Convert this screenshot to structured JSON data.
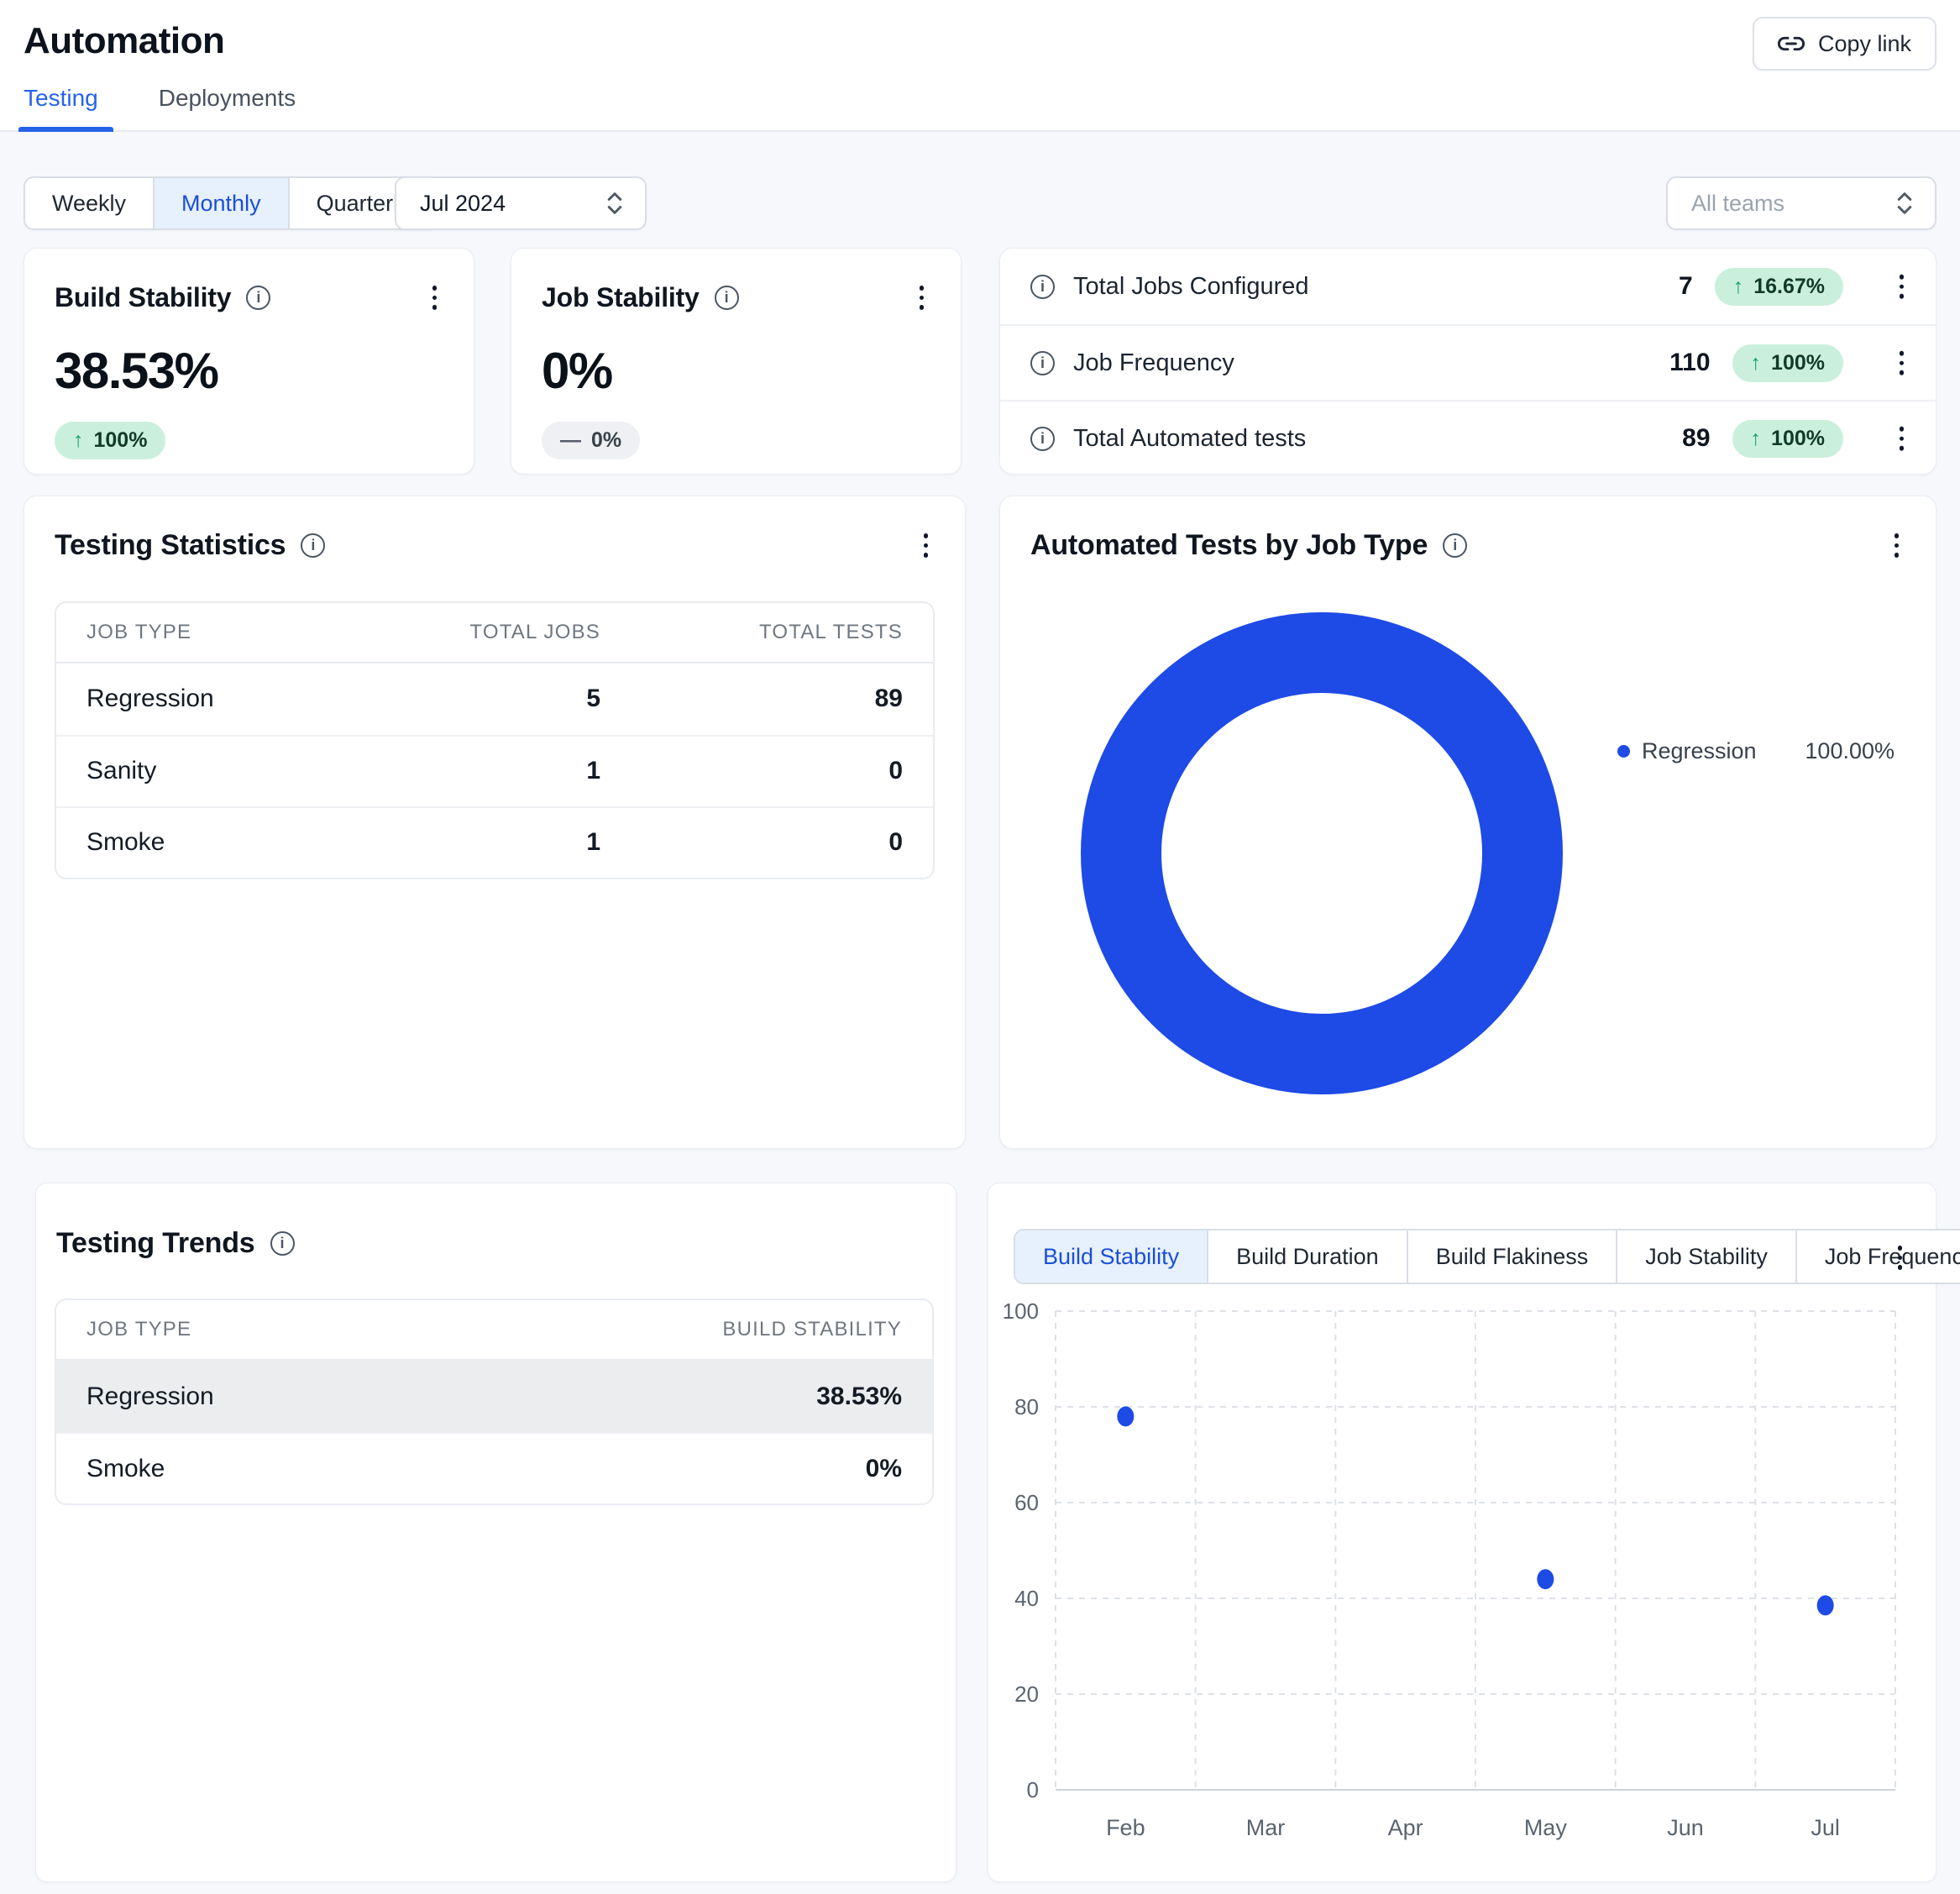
{
  "colors": {
    "accent_blue": "#1e4ae6",
    "tab_blue": "#2563eb",
    "badge_green_bg": "#cbefdd",
    "badge_green_text": "#103b2a"
  },
  "header": {
    "title": "Automation",
    "copy_link_label": "Copy link",
    "tabs": [
      {
        "label": "Testing"
      },
      {
        "label": "Deployments"
      }
    ]
  },
  "filters": {
    "periods": [
      {
        "label": "Weekly"
      },
      {
        "label": "Monthly"
      },
      {
        "label": "Quarterly"
      }
    ],
    "period_selected": "Monthly",
    "month_value": "Jul 2024",
    "teams_value": "All teams"
  },
  "metric_cards": [
    {
      "title": "Build Stability",
      "value": "38.53%",
      "arrow": "↑",
      "delta": "100%"
    },
    {
      "title": "Job Stability",
      "value": "0%",
      "arrow": "—",
      "delta": "0%"
    }
  ],
  "summary_stats": [
    {
      "label": "Total Jobs Configured",
      "value": "7",
      "arrow": "↑",
      "delta": "16.67%"
    },
    {
      "label": "Job Frequency",
      "value": "110",
      "arrow": "↑",
      "delta": "100%"
    },
    {
      "label": "Total Automated tests",
      "value": "89",
      "arrow": "↑",
      "delta": "100%"
    }
  ],
  "testing_statistics": {
    "title": "Testing Statistics",
    "columns": [
      "JOB TYPE",
      "TOTAL JOBS",
      "TOTAL TESTS"
    ],
    "rows": [
      {
        "job": "Regression",
        "total_jobs": "5",
        "total_tests": "89"
      },
      {
        "job": "Sanity",
        "total_jobs": "1",
        "total_tests": "0"
      },
      {
        "job": "Smoke",
        "total_jobs": "1",
        "total_tests": "0"
      }
    ]
  },
  "donut_panel": {
    "title": "Automated Tests by Job Type",
    "legend": [
      {
        "label": "Regression",
        "value": "100.00%"
      }
    ]
  },
  "trends": {
    "title": "Testing Trends",
    "columns": [
      "JOB TYPE",
      "BUILD STABILITY"
    ],
    "rows": [
      {
        "job": "Regression",
        "value": "38.53%",
        "selected": true
      },
      {
        "job": "Smoke",
        "value": "0%",
        "selected": false
      }
    ]
  },
  "trend_tabs": [
    {
      "label": "Build Stability",
      "active": true
    },
    {
      "label": "Build Duration",
      "active": false
    },
    {
      "label": "Build Flakiness",
      "active": false
    },
    {
      "label": "Job Stability",
      "active": false
    },
    {
      "label": "Job Frequency",
      "active": false
    }
  ],
  "chart_data": [
    {
      "type": "pie",
      "donut": true,
      "title": "Automated Tests by Job Type",
      "labels": [
        "Regression"
      ],
      "values": [
        100.0
      ],
      "value_format": "percent",
      "colors": [
        "#1e4ae6"
      ],
      "legend_position": "right"
    },
    {
      "type": "scatter",
      "title": "Testing Trends — Build Stability",
      "x_categories": [
        "Feb",
        "Mar",
        "Apr",
        "May",
        "Jun",
        "Jul"
      ],
      "points": [
        {
          "x": "Feb",
          "y": 78
        },
        {
          "x": "May",
          "y": 44
        },
        {
          "x": "Jul",
          "y": 38.53
        }
      ],
      "ylim": [
        0,
        100
      ],
      "yticks": [
        0,
        20,
        40,
        60,
        80,
        100
      ],
      "grid": true,
      "point_color": "#1e4ae6"
    }
  ]
}
